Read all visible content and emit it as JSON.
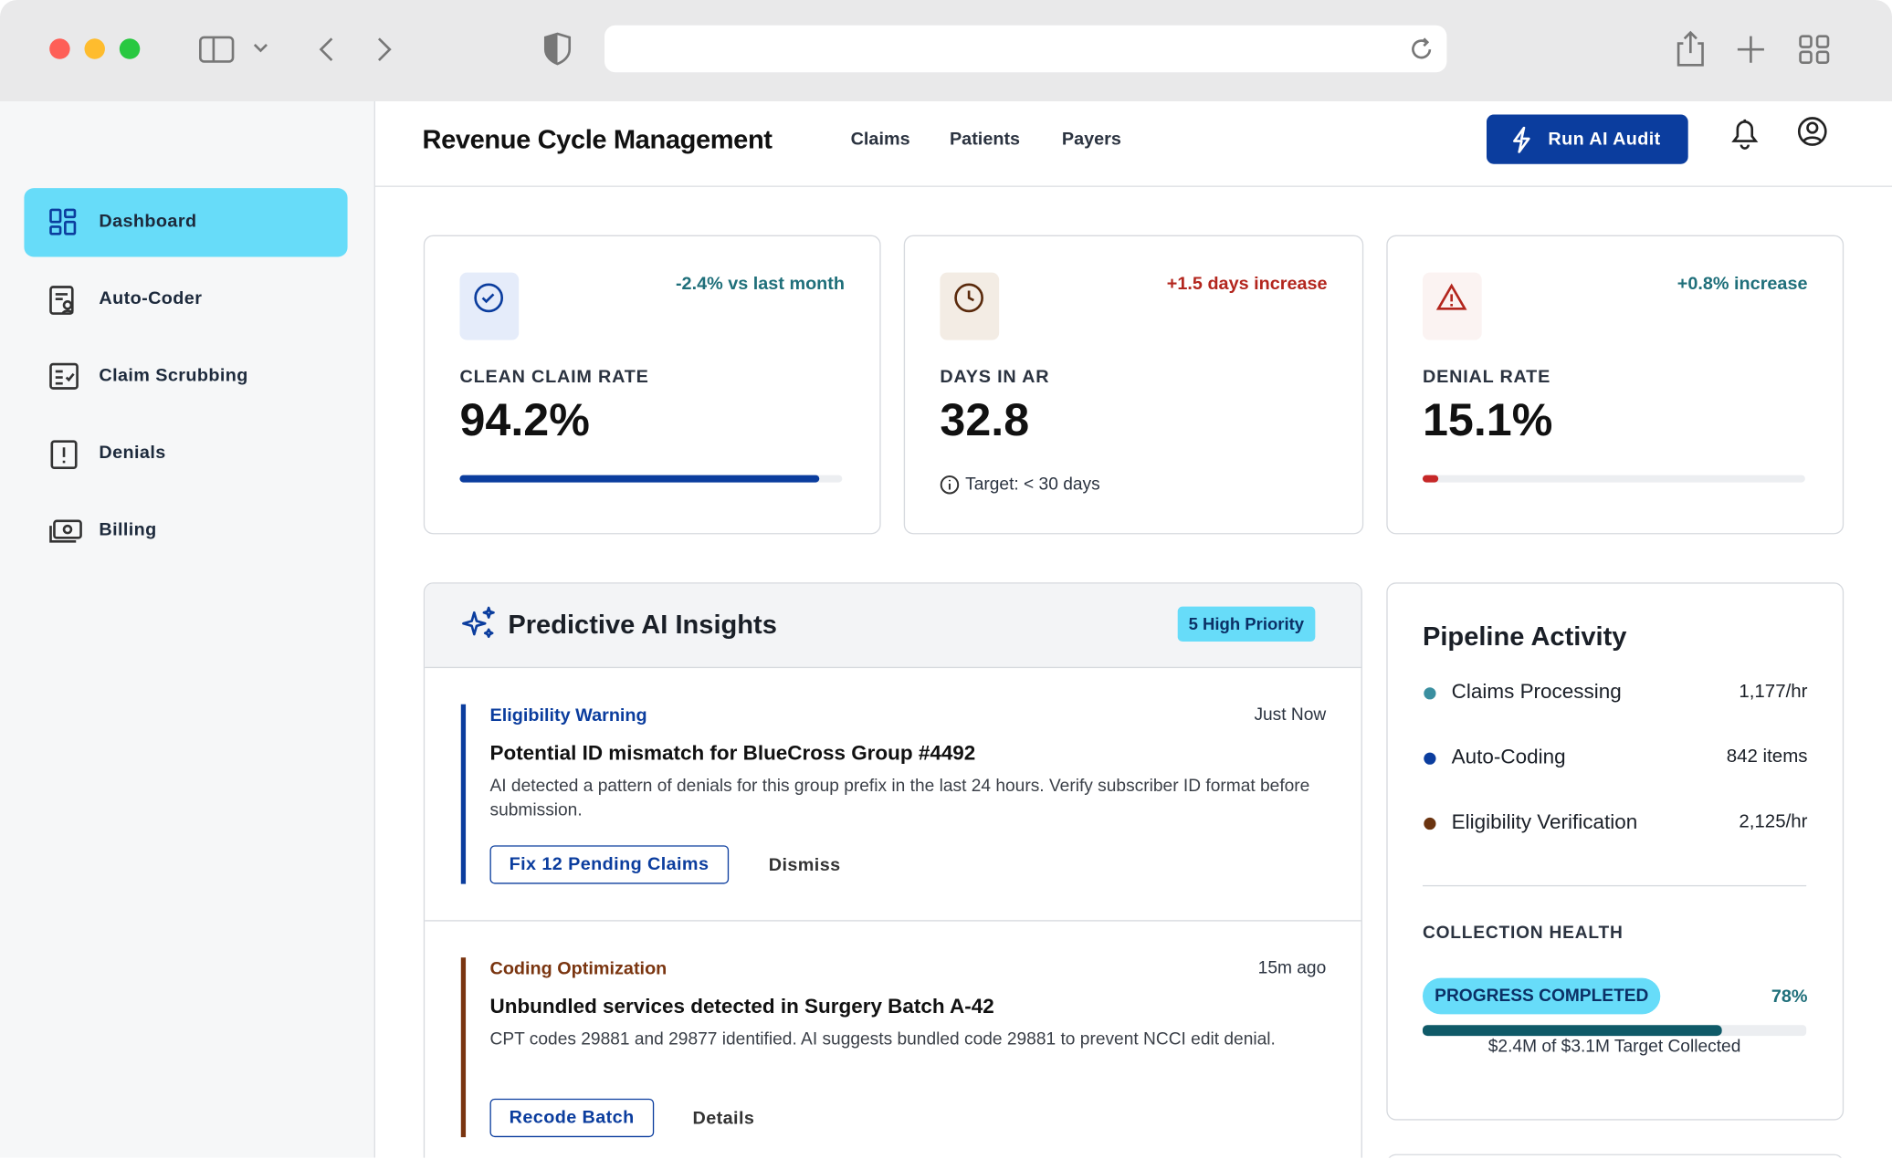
{
  "sidebar": {
    "items": [
      "Dashboard",
      "Auto-Coder",
      "Claim Scrubbing",
      "Denials",
      "Billing"
    ]
  },
  "header": {
    "title": "Revenue Cycle Management",
    "links": [
      "Claims",
      "Patients",
      "Payers"
    ],
    "button": "Run AI Audit"
  },
  "kpis": [
    {
      "change": "-2.4% vs last month",
      "label": "CLEAN CLAIM RATE",
      "value": "94.2%"
    },
    {
      "change": "+1.5 days increase",
      "label": "DAYS IN AR",
      "value": "32.8",
      "note": "Target: < 30 days"
    },
    {
      "change": "+0.8% increase",
      "label": "DENIAL RATE",
      "value": "15.1%"
    }
  ],
  "insights": {
    "title": "Predictive AI Insights",
    "badge": "5 High Priority",
    "items": [
      {
        "category": "Eligibility Warning",
        "time": "Just Now",
        "title": "Potential ID mismatch for BlueCross Group #4492",
        "description": "AI detected a pattern of denials for this group prefix in the last 24 hours. Verify subscriber ID format before submission.",
        "primary": "Fix 12 Pending Claims",
        "secondary": "Dismiss"
      },
      {
        "category": "Coding Optimization",
        "time": "15m ago",
        "title": "Unbundled services detected in Surgery Batch A-42",
        "description": "CPT codes 29881 and 29877 identified. AI suggests bundled code 29881 to prevent NCCI edit denial.",
        "primary": "Recode Batch",
        "secondary": "Details"
      }
    ]
  },
  "pipeline": {
    "title": "Pipeline Activity",
    "rows": [
      {
        "name": "Claims Processing",
        "value": "1,177/hr"
      },
      {
        "name": "Auto-Coding",
        "value": "842 items"
      },
      {
        "name": "Eligibility Verification",
        "value": "2,125/hr"
      }
    ],
    "health_label": "COLLECTION HEALTH",
    "pill": "PROGRESS COMPLETED",
    "percent": "78%",
    "caption": "$2.4M of $3.1M Target Collected"
  }
}
